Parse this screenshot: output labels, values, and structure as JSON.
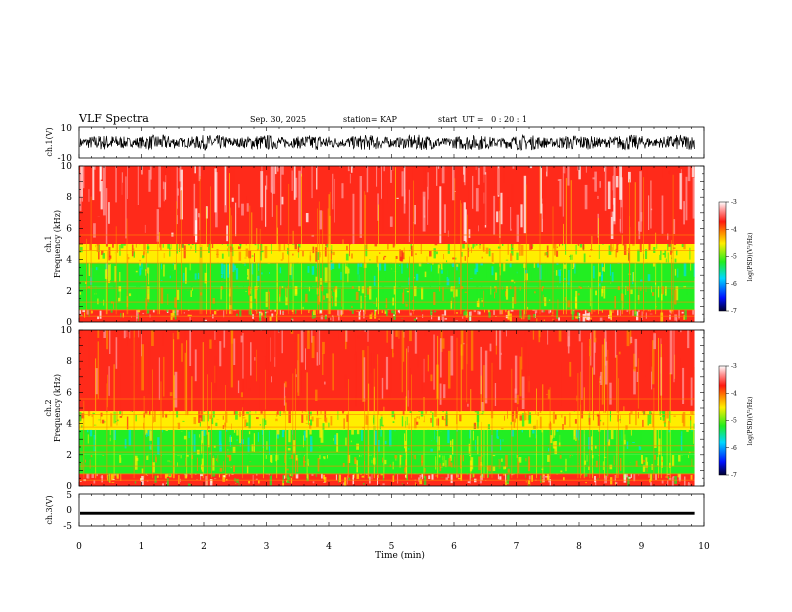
{
  "header": {
    "title": "VLF Spectra",
    "date": "Sep. 30, 2025",
    "station": "station= KAP",
    "start": "start  UT =   0 : 20 : 1"
  },
  "chart_data": [
    {
      "type": "line",
      "name": "ch.1 waveform",
      "ylabel": "ch.1(V)",
      "ylim": [
        -10,
        10
      ],
      "yticks": [
        "10",
        "-10"
      ],
      "xlim": [
        0,
        10
      ],
      "data_end_min": 9.85,
      "amplitude_envelope_v": [
        5,
        -5
      ]
    },
    {
      "type": "heatmap",
      "name": "ch.1 spectrogram",
      "ylabel_line1": "ch.1",
      "ylabel_line2": "Frequency (kHz)",
      "ylim": [
        0,
        10
      ],
      "yticks": [
        "0",
        "2",
        "4",
        "6",
        "8",
        "10"
      ],
      "xlim": [
        0,
        10
      ],
      "data_end_min": 9.85,
      "bands": [
        {
          "from_khz": 0.0,
          "to_khz": 0.8,
          "level": "low-mixed"
        },
        {
          "from_khz": 0.8,
          "to_khz": 2.3,
          "level": "green-yellow"
        },
        {
          "from_khz": 2.3,
          "to_khz": 3.8,
          "level": "green"
        },
        {
          "from_khz": 3.8,
          "to_khz": 5.0,
          "level": "yellow"
        },
        {
          "from_khz": 5.0,
          "to_khz": 10.0,
          "level": "red-white"
        }
      ],
      "colorbar": {
        "label": "log(PSD)(V²/Hz)",
        "ticks": [
          "-3",
          "-4",
          "-5",
          "-6",
          "-7"
        ],
        "range": [
          -7,
          -3
        ]
      }
    },
    {
      "type": "heatmap",
      "name": "ch.2 spectrogram",
      "ylabel_line1": "ch.2",
      "ylabel_line2": "Frequency (kHz)",
      "ylim": [
        0,
        10
      ],
      "yticks": [
        "0",
        "2",
        "4",
        "6",
        "8",
        "10"
      ],
      "xlim": [
        0,
        10
      ],
      "data_end_min": 9.85,
      "bands": [
        {
          "from_khz": 0.0,
          "to_khz": 0.8,
          "level": "low-mixed"
        },
        {
          "from_khz": 0.8,
          "to_khz": 2.0,
          "level": "green-yellow"
        },
        {
          "from_khz": 2.0,
          "to_khz": 3.6,
          "level": "green"
        },
        {
          "from_khz": 3.6,
          "to_khz": 4.8,
          "level": "yellow"
        },
        {
          "from_khz": 4.8,
          "to_khz": 10.0,
          "level": "red"
        }
      ],
      "colorbar": {
        "label": "log(PSD)(V²/Hz)",
        "ticks": [
          "-3",
          "-4",
          "-5",
          "-6",
          "-7"
        ],
        "range": [
          -7,
          -3
        ]
      }
    },
    {
      "type": "line",
      "name": "ch.3 waveform",
      "ylabel": "ch.3(V)",
      "ylim": [
        -5,
        5
      ],
      "yticks": [
        "5",
        "0",
        "-5"
      ],
      "xlim": [
        0,
        10
      ],
      "data_end_min": 9.85,
      "level_v": -1.0,
      "band_halfwidth_v": 0.45
    }
  ],
  "xaxis": {
    "label": "Time (min)",
    "ticks": [
      "0",
      "1",
      "2",
      "3",
      "4",
      "5",
      "6",
      "7",
      "8",
      "9",
      "10"
    ]
  },
  "colors": {
    "axis": "#000000",
    "spec_white": "#ffffff",
    "spec_pink": "#ff9a9a",
    "spec_red": "#ff2a1a",
    "spec_orange": "#ff8a00",
    "spec_yellow": "#ffee00",
    "spec_green": "#22ee22",
    "spec_cyan": "#00e0e0",
    "spec_blue": "#0022ff",
    "spec_navy": "#000040"
  }
}
